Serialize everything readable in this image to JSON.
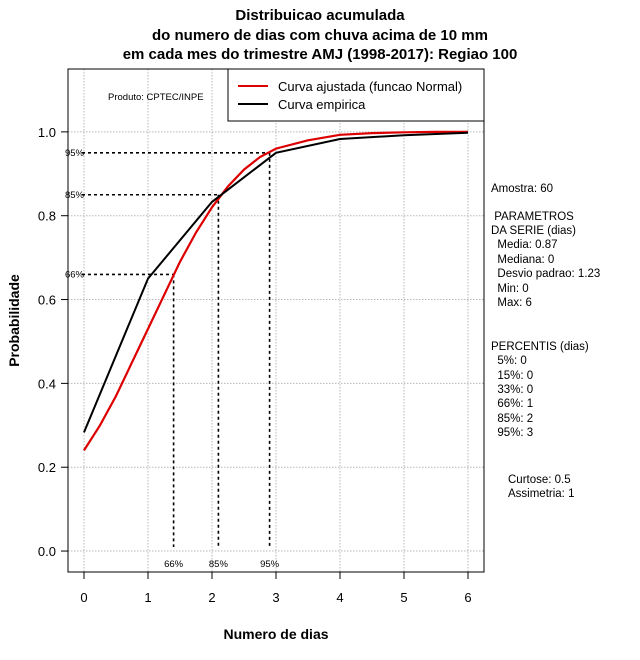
{
  "titles": [
    "Distribuicao acumulada",
    "do numero de dias com chuva acima de 10 mm",
    "em cada mes do trimestre AMJ (1998-2017): Regiao 100"
  ],
  "product_label": "Produto: CPTEC/INPE",
  "side_panel": {
    "sample": "Amostra: 60",
    "params_title_1": " PARAMETROS",
    "params_title_2": "DA SERIE (dias)",
    "media": "  Media: 0.87",
    "mediana": "  Mediana: 0",
    "desvio": "  Desvio padrao: 1.23",
    "min": "  Min: 0",
    "max": "  Max: 6",
    "perc_title": "PERCENTIS (dias)",
    "p5": "  5%: 0",
    "p15": "  15%: 0",
    "p33": "  33%: 0",
    "p66": "  66%: 1",
    "p85": "  85%: 2",
    "p95": "  95%: 3",
    "curtose": "Curtose: 0.5",
    "assimetria": "Assimetria: 1"
  },
  "chart_data": {
    "type": "line",
    "xlabel": "Numero de dias",
    "ylabel": "Probabilidade",
    "xlim": [
      -0.25,
      6.25
    ],
    "ylim": [
      -0.05,
      1.15
    ],
    "xticks": [
      "0",
      "1",
      "2",
      "3",
      "4",
      "5",
      "6"
    ],
    "yticks": [
      "0.0",
      "0.2",
      "0.4",
      "0.6",
      "0.8",
      "1.0"
    ],
    "grid": true,
    "legend_position": "top-right",
    "series": [
      {
        "name": "Curva ajustada (funcao Normal)",
        "color": "#dd0000",
        "x": [
          0,
          0.25,
          0.5,
          0.75,
          1.0,
          1.25,
          1.5,
          1.75,
          2.0,
          2.25,
          2.5,
          2.75,
          3.0,
          3.5,
          4.0,
          4.5,
          5.0,
          5.5,
          6.0
        ],
        "y": [
          0.24,
          0.3,
          0.37,
          0.45,
          0.53,
          0.61,
          0.69,
          0.76,
          0.82,
          0.87,
          0.91,
          0.94,
          0.96,
          0.98,
          0.993,
          0.997,
          0.999,
          1.0,
          1.0
        ]
      },
      {
        "name": "Curva empirica",
        "color": "#000000",
        "x": [
          0,
          1,
          2,
          3,
          4,
          5,
          6
        ],
        "y": [
          0.283,
          0.65,
          0.833,
          0.95,
          0.983,
          0.992,
          0.998
        ]
      }
    ],
    "percentile_lines": [
      {
        "label": "66%",
        "prob": 0.66,
        "x": 1.4
      },
      {
        "label": "85%",
        "prob": 0.85,
        "x": 2.1
      },
      {
        "label": "95%",
        "prob": 0.95,
        "x": 2.9
      }
    ]
  }
}
